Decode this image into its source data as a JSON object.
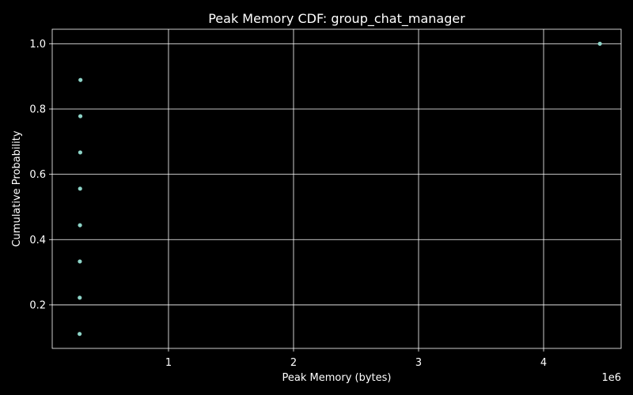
{
  "chart_data": {
    "type": "scatter",
    "title": "Peak Memory CDF: group_chat_manager",
    "xlabel": "Peak Memory (bytes)",
    "ylabel": "Cumulative Probability",
    "x_offset_label": "1e6",
    "x_scale": 1000000,
    "xlim": [
      70000,
      4620000
    ],
    "ylim": [
      0.0667,
      1.0444
    ],
    "xticks": [
      1000000,
      2000000,
      3000000,
      4000000
    ],
    "xtick_labels": [
      "1",
      "2",
      "3",
      "4"
    ],
    "yticks": [
      0.2,
      0.4,
      0.6,
      0.8,
      1.0
    ],
    "ytick_labels": [
      "0.2",
      "0.4",
      "0.6",
      "0.8",
      "1.0"
    ],
    "grid": true,
    "background": "#000000",
    "foreground": "#ffffff",
    "marker_color": "#8dd3c7",
    "series": [
      {
        "x": [
          289000,
          290000,
          291000,
          292000,
          293000,
          294000,
          295000,
          296000,
          4450000
        ],
        "y": [
          0.111,
          0.222,
          0.333,
          0.444,
          0.556,
          0.667,
          0.778,
          0.889,
          1.0
        ]
      }
    ]
  }
}
